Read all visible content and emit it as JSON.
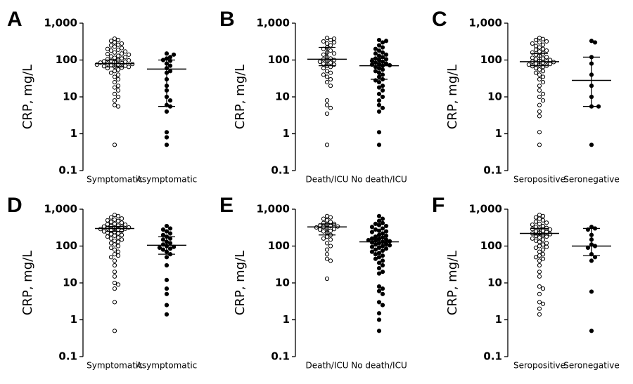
{
  "chart_data": [
    {
      "type": "strip",
      "panel": "A",
      "y_label": "CRP, mg/L",
      "log_scale": true,
      "ylim": [
        0.1,
        1000
      ],
      "yticks": [
        0.1,
        1,
        10,
        100,
        {
          "value": 1000,
          "label": "1,000"
        }
      ],
      "categories": [
        "Symptomatic",
        "Asymptomatic"
      ],
      "groups": [
        {
          "marker": "open",
          "median": 80,
          "q1": 65,
          "q3": 100,
          "values": [
            380,
            350,
            330,
            300,
            280,
            260,
            250,
            230,
            210,
            200,
            190,
            180,
            170,
            160,
            150,
            145,
            140,
            130,
            125,
            120,
            115,
            110,
            105,
            100,
            98,
            95,
            92,
            90,
            88,
            85,
            82,
            80,
            78,
            76,
            75,
            72,
            70,
            68,
            66,
            65,
            62,
            60,
            55,
            50,
            45,
            40,
            35,
            30,
            25,
            20,
            18,
            15,
            12,
            10,
            8,
            6,
            5.5,
            0.5
          ]
        },
        {
          "marker": "filled",
          "median": 57,
          "q1": 5.5,
          "q3": 100,
          "values": [
            150,
            140,
            120,
            110,
            100,
            95,
            80,
            70,
            60,
            50,
            45,
            30,
            20,
            15,
            10,
            8,
            6,
            5.5,
            4,
            1.1,
            0.8,
            0.5
          ]
        }
      ]
    },
    {
      "type": "strip",
      "panel": "B",
      "y_label": "CRP, mg/L",
      "log_scale": true,
      "ylim": [
        0.1,
        1000
      ],
      "yticks": [
        0.1,
        1,
        10,
        100,
        {
          "value": 1000,
          "label": "1,000"
        }
      ],
      "categories": [
        "Death/ICU",
        "No death/ICU"
      ],
      "groups": [
        {
          "marker": "open",
          "median": 105,
          "q1": 70,
          "q3": 220,
          "values": [
            400,
            380,
            350,
            320,
            300,
            280,
            250,
            220,
            200,
            180,
            160,
            150,
            140,
            120,
            110,
            105,
            100,
            95,
            90,
            85,
            80,
            75,
            70,
            65,
            60,
            50,
            45,
            40,
            35,
            30,
            25,
            20,
            8,
            6,
            5,
            3.5,
            0.5
          ]
        },
        {
          "marker": "filled",
          "median": 70,
          "q1": 30,
          "q3": 110,
          "values": [
            350,
            330,
            300,
            250,
            220,
            200,
            180,
            160,
            150,
            140,
            130,
            120,
            110,
            105,
            100,
            95,
            90,
            85,
            80,
            78,
            75,
            72,
            70,
            65,
            60,
            55,
            50,
            45,
            40,
            35,
            30,
            28,
            25,
            20,
            18,
            15,
            12,
            10,
            8,
            6,
            5,
            4,
            1.1,
            0.5
          ]
        }
      ]
    },
    {
      "type": "strip",
      "panel": "C",
      "y_label": "CRP, mg/L",
      "log_scale": true,
      "ylim": [
        0.1,
        1000
      ],
      "yticks": [
        0.1,
        1,
        10,
        100,
        {
          "value": 1000,
          "label": "1,000"
        }
      ],
      "categories": [
        "Seropositive",
        "Seronegative"
      ],
      "groups": [
        {
          "marker": "open",
          "median": 90,
          "q1": 70,
          "q3": 150,
          "values": [
            400,
            370,
            350,
            320,
            300,
            280,
            260,
            240,
            220,
            200,
            190,
            180,
            170,
            160,
            150,
            140,
            130,
            120,
            115,
            110,
            105,
            100,
            95,
            92,
            90,
            88,
            85,
            80,
            78,
            75,
            72,
            70,
            68,
            65,
            60,
            55,
            50,
            45,
            40,
            35,
            30,
            25,
            20,
            15,
            12,
            10,
            8,
            6,
            4,
            3,
            1.1,
            0.5
          ]
        },
        {
          "marker": "filled",
          "median": 28,
          "q1": 5.5,
          "q3": 120,
          "values": [
            330,
            300,
            120,
            80,
            40,
            20,
            10,
            5.5,
            5.5,
            0.5
          ]
        }
      ]
    },
    {
      "type": "strip",
      "panel": "D",
      "y_label": "CRP, mg/L",
      "log_scale": true,
      "ylim": [
        0.1,
        1000
      ],
      "yticks": [
        0.1,
        1,
        10,
        100,
        {
          "value": 1000,
          "label": "1,000"
        }
      ],
      "categories": [
        "Symptomatic",
        "Asymptomatic"
      ],
      "groups": [
        {
          "marker": "open",
          "median": 300,
          "q1": 250,
          "q3": 340,
          "values": [
            700,
            650,
            600,
            560,
            520,
            500,
            480,
            450,
            430,
            400,
            390,
            380,
            360,
            350,
            340,
            330,
            320,
            310,
            300,
            295,
            290,
            280,
            270,
            260,
            250,
            240,
            230,
            220,
            210,
            200,
            190,
            180,
            170,
            160,
            150,
            140,
            130,
            120,
            110,
            100,
            90,
            80,
            70,
            60,
            55,
            50,
            40,
            30,
            20,
            15,
            10,
            9,
            7,
            3,
            0.5
          ]
        },
        {
          "marker": "filled",
          "median": 105,
          "q1": 60,
          "q3": 180,
          "values": [
            350,
            300,
            280,
            250,
            220,
            200,
            180,
            160,
            150,
            130,
            120,
            110,
            100,
            95,
            90,
            85,
            80,
            70,
            60,
            50,
            30,
            12,
            7,
            5,
            2.5,
            1.4
          ]
        }
      ]
    },
    {
      "type": "strip",
      "panel": "E",
      "y_label": "CRP, mg/L",
      "log_scale": true,
      "ylim": [
        0.1,
        1000
      ],
      "yticks": [
        0.1,
        1,
        10,
        100,
        {
          "value": 1000,
          "label": "1,000"
        }
      ],
      "categories": [
        "Death/ICU",
        "No death/ICU"
      ],
      "groups": [
        {
          "marker": "open",
          "median": 330,
          "q1": 200,
          "q3": 400,
          "values": [
            650,
            600,
            550,
            500,
            450,
            420,
            400,
            380,
            360,
            350,
            340,
            330,
            320,
            300,
            290,
            280,
            260,
            250,
            230,
            200,
            180,
            160,
            150,
            120,
            100,
            80,
            60,
            45,
            40,
            13
          ]
        },
        {
          "marker": "filled",
          "median": 130,
          "q1": 100,
          "q3": 160,
          "values": [
            650,
            550,
            480,
            420,
            400,
            370,
            350,
            330,
            300,
            280,
            260,
            250,
            240,
            220,
            200,
            190,
            180,
            170,
            160,
            155,
            150,
            145,
            140,
            135,
            130,
            125,
            120,
            115,
            110,
            105,
            100,
            95,
            90,
            85,
            80,
            75,
            70,
            65,
            60,
            55,
            50,
            45,
            40,
            35,
            30,
            25,
            20,
            18,
            8,
            7,
            6,
            5,
            3,
            2.5,
            1.5,
            1,
            0.5
          ]
        }
      ]
    },
    {
      "type": "strip",
      "panel": "F",
      "y_label": "CRP, mg/L",
      "log_scale": true,
      "ylim": [
        0.1,
        1000
      ],
      "yticks": [
        0.1,
        1,
        10,
        100,
        {
          "value": 1000,
          "label": "1,000"
        }
      ],
      "categories": [
        "Seropositive",
        "Seronegative"
      ],
      "groups": [
        {
          "marker": "open",
          "median": 220,
          "q1": 200,
          "q3": 300,
          "values": [
            700,
            650,
            600,
            550,
            500,
            460,
            430,
            400,
            380,
            350,
            330,
            310,
            300,
            290,
            280,
            260,
            250,
            240,
            230,
            220,
            210,
            200,
            190,
            180,
            170,
            160,
            150,
            140,
            130,
            120,
            110,
            100,
            95,
            90,
            80,
            70,
            60,
            55,
            50,
            45,
            40,
            30,
            20,
            15,
            8,
            7,
            5,
            3,
            2.7,
            2,
            1.4
          ]
        },
        {
          "marker": "filled",
          "median": 100,
          "q1": 55,
          "q3": 300,
          "values": [
            330,
            300,
            280,
            200,
            150,
            110,
            100,
            90,
            60,
            50,
            40,
            5.8,
            0.5
          ]
        }
      ]
    }
  ]
}
